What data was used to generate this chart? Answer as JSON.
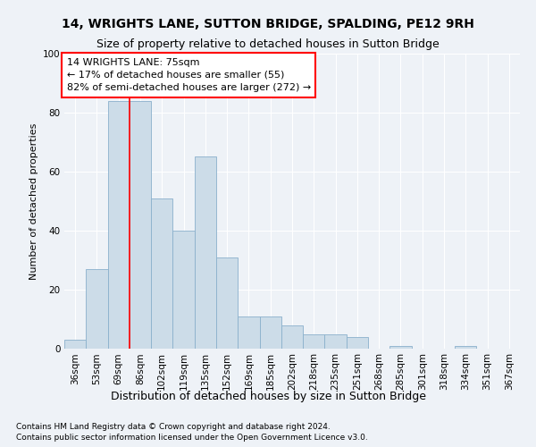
{
  "title": "14, WRIGHTS LANE, SUTTON BRIDGE, SPALDING, PE12 9RH",
  "subtitle": "Size of property relative to detached houses in Sutton Bridge",
  "xlabel": "Distribution of detached houses by size in Sutton Bridge",
  "ylabel": "Number of detached properties",
  "footnote1": "Contains HM Land Registry data © Crown copyright and database right 2024.",
  "footnote2": "Contains public sector information licensed under the Open Government Licence v3.0.",
  "annotation_title": "14 WRIGHTS LANE: 75sqm",
  "annotation_line1": "← 17% of detached houses are smaller (55)",
  "annotation_line2": "82% of semi-detached houses are larger (272) →",
  "bar_labels": [
    "36sqm",
    "53sqm",
    "69sqm",
    "86sqm",
    "102sqm",
    "119sqm",
    "135sqm",
    "152sqm",
    "169sqm",
    "185sqm",
    "202sqm",
    "218sqm",
    "235sqm",
    "251sqm",
    "268sqm",
    "285sqm",
    "301sqm",
    "318sqm",
    "334sqm",
    "351sqm",
    "367sqm"
  ],
  "bar_values": [
    3,
    27,
    84,
    84,
    51,
    40,
    65,
    31,
    11,
    11,
    8,
    5,
    5,
    4,
    0,
    1,
    0,
    0,
    1,
    0,
    0
  ],
  "bar_color": "#ccdce8",
  "bar_edge_color": "#8ab0cc",
  "vline_x": 2.5,
  "vline_color": "red",
  "bg_color": "#eef2f7",
  "plot_bg_color": "#eef2f7",
  "annotation_box_color": "#ffffff",
  "annotation_box_edge": "red",
  "ylim": [
    0,
    100
  ],
  "yticks": [
    0,
    20,
    40,
    60,
    80,
    100
  ],
  "title_fontsize": 10,
  "subtitle_fontsize": 9,
  "ylabel_fontsize": 8,
  "xlabel_fontsize": 9,
  "tick_fontsize": 7.5,
  "annot_fontsize": 8
}
